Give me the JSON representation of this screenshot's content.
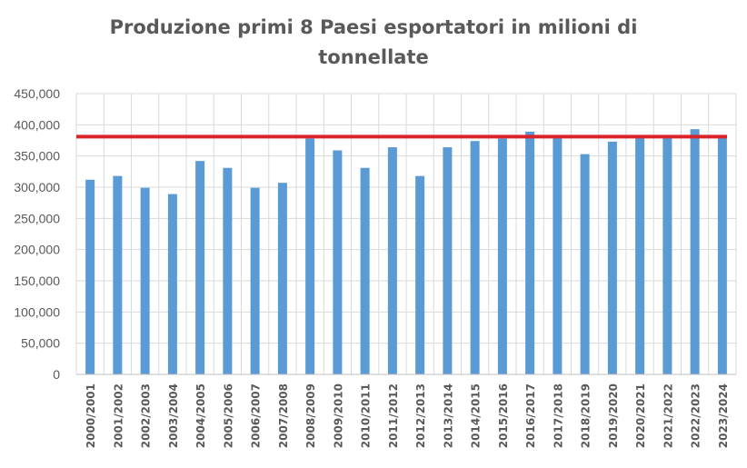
{
  "chart_data": {
    "type": "bar",
    "title_lines": [
      "Produzione primi 8 Paesi esportatori in milioni di",
      "tonnellate"
    ],
    "categories": [
      "2000/2001",
      "2001/2002",
      "2002/2003",
      "2003/2004",
      "2004/2005",
      "2005/2006",
      "2006/2007",
      "2007/2008",
      "2008/2009",
      "2009/2010",
      "2010/2011",
      "2011/2012",
      "2012/2013",
      "2013/2014",
      "2014/2015",
      "2015/2016",
      "2016/2017",
      "2017/2018",
      "2018/2019",
      "2019/2020",
      "2020/2021",
      "2021/2022",
      "2022/2023",
      "2023/2024"
    ],
    "values": [
      312000,
      318000,
      299000,
      289000,
      342000,
      331000,
      299000,
      307000,
      378000,
      359000,
      331000,
      364000,
      318000,
      364000,
      374000,
      378000,
      389000,
      381000,
      353000,
      373000,
      379000,
      381000,
      393000,
      381000
    ],
    "reference_line": 381000,
    "ylim": [
      0,
      450000
    ],
    "yticks": [
      "0",
      "50,000",
      "100,000",
      "150,000",
      "200,000",
      "250,000",
      "300,000",
      "350,000",
      "400,000",
      "450,000"
    ],
    "grid": true,
    "xlabel": "",
    "ylabel": "",
    "colors": {
      "bar": "#5B9BD5",
      "reference_line": "#D9252A",
      "grid": "#D9D9D9",
      "text": "#595959"
    }
  }
}
